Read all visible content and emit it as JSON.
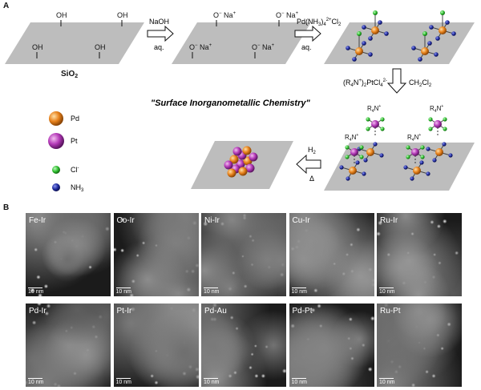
{
  "panel_a_label": "A",
  "panel_b_label": "B",
  "silica_surface": {
    "oh_label": "OH",
    "oxide_label": "O",
    "oxide_charge": "−",
    "na_label": "Na",
    "na_charge": "+",
    "support_label": "SiO",
    "support_subscript": "2"
  },
  "steps": {
    "naoh": "NaOH",
    "aq1": "aq.",
    "pd_reagent": "Pd(NH",
    "pd_sub": "3",
    "pd_reagent_rest": ")",
    "pd_sub2": "4",
    "pd_sup": "2+",
    "pd_cl": "Cl",
    "pd_cl_sub": "2",
    "aq2": "aq.",
    "pt_reagent": "(R",
    "pt_sub": "4",
    "pt_rest": "N",
    "pt_sup": "+",
    "pt_rest2": ")",
    "pt_sub2": "2",
    "pt_rest3": "PtCl",
    "pt_sub3": "4",
    "pt_sup2": "2-",
    "solvent": "CH",
    "solvent_sub": "2",
    "solvent_rest": "Cl",
    "solvent_sub2": "2",
    "h2": "H",
    "h2_sub": "2",
    "delta": "Δ"
  },
  "r4n_label": "R",
  "r4n_sub": "4",
  "r4n_rest": "N",
  "r4n_sup": "+",
  "title": "\"Surface Inorganometallic Chemistry\"",
  "legend": [
    {
      "label": "Pd",
      "color": "#e8821c"
    },
    {
      "label": "Pt",
      "color": "#b43ab8"
    },
    {
      "label": "Cl",
      "sup": "-",
      "color": "#2fbf2f"
    },
    {
      "label": "NH",
      "sub": "3",
      "color": "#1f2a9c"
    }
  ],
  "tiles": [
    {
      "label": "Fe-Ir",
      "scale": "10 nm"
    },
    {
      "label": "Co-Ir",
      "scale": "10 nm"
    },
    {
      "label": "Ni-Ir",
      "scale": "10 nm"
    },
    {
      "label": "Cu-Ir",
      "scale": "10 nm"
    },
    {
      "label": "Ru-Ir",
      "scale": "10 nm"
    },
    {
      "label": "Pd-Ir",
      "scale": "10 nm"
    },
    {
      "label": "Pt-Ir",
      "scale": "10 nm"
    },
    {
      "label": "Pd-Au",
      "scale": "10 nm"
    },
    {
      "label": "Pd-Pt",
      "scale": "10 nm"
    },
    {
      "label": "Ru-Pt",
      "scale": "10 nm"
    }
  ]
}
